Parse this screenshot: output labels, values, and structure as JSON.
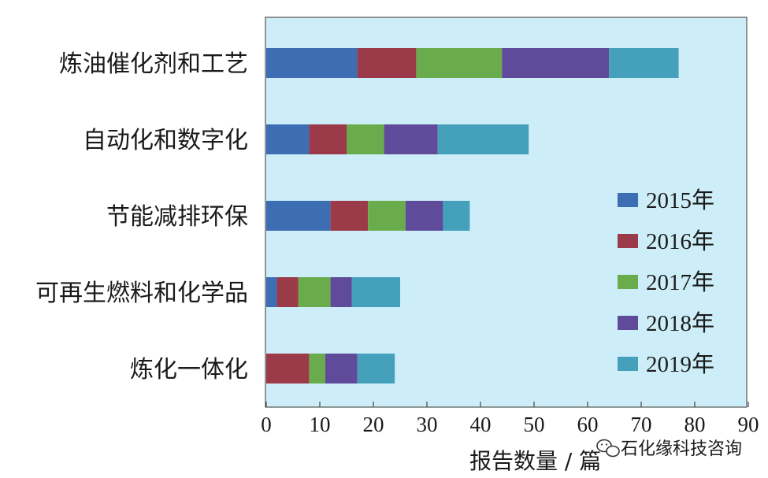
{
  "chart_data": {
    "type": "bar",
    "orientation": "horizontal",
    "stacked": true,
    "categories": [
      "炼油催化剂和工艺",
      "自动化和数字化",
      "节能减排环保",
      "可再生燃料和化学品",
      "炼化一体化"
    ],
    "series": [
      {
        "name": "2015年",
        "color": "#3d6db3",
        "values": [
          17,
          8,
          12,
          2,
          0
        ]
      },
      {
        "name": "2016年",
        "color": "#9b3a48",
        "values": [
          11,
          7,
          7,
          4,
          8
        ]
      },
      {
        "name": "2017年",
        "color": "#6aac4c",
        "values": [
          16,
          7,
          7,
          6,
          3
        ]
      },
      {
        "name": "2018年",
        "color": "#5f4b9a",
        "values": [
          20,
          10,
          7,
          4,
          6
        ]
      },
      {
        "name": "2019年",
        "color": "#45a0bc",
        "values": [
          13,
          17,
          5,
          9,
          7
        ]
      }
    ],
    "xlim": [
      0,
      90
    ],
    "xticks": [
      "0",
      "10",
      "20",
      "30",
      "40",
      "50",
      "60",
      "70",
      "80",
      "90"
    ],
    "xlabel": "报告数量 / 篇",
    "plot_background": "#cdeef8",
    "legend_position": "right"
  },
  "watermark": {
    "text": "石化缘科技咨询",
    "icon": "wechat-icon"
  }
}
